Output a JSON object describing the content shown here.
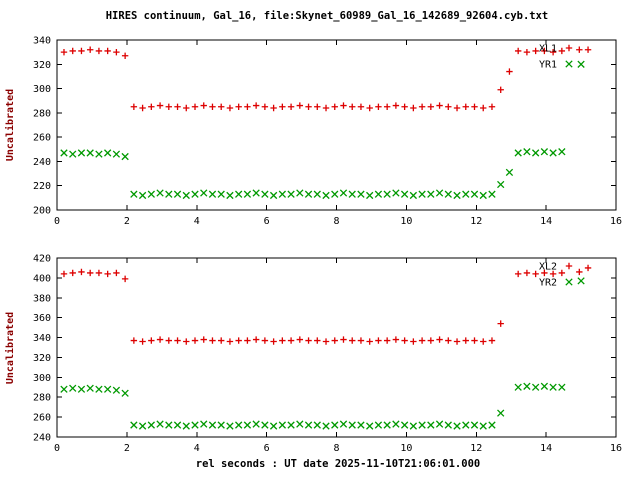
{
  "title": "HIRES continuum, Gal_16, file:Skynet_60989_Gal_16_142689_92604.cyb.txt",
  "xlabel": "rel seconds : UT date 2025-11-10T21:06:01.000",
  "colors": {
    "title": "#000000",
    "ylabel": "#8b0000",
    "xlabel": "#000000",
    "tick": "#000000",
    "red": "#dd0000",
    "green": "#009900",
    "frame": "#000000",
    "background": "#ffffff"
  },
  "chart_data": [
    {
      "type": "scatter",
      "title": "",
      "ylabel": "Uncalibrated",
      "xlim": [
        0,
        16
      ],
      "ylim": [
        200,
        340
      ],
      "xticks": [
        0,
        2,
        4,
        6,
        8,
        10,
        12,
        14,
        16
      ],
      "yticks": [
        200,
        220,
        240,
        260,
        280,
        300,
        320,
        340
      ],
      "grid": false,
      "legend_position": "top-right-inside",
      "legend": [
        {
          "label": "XL1",
          "marker": "plus",
          "color": "#dd0000"
        },
        {
          "label": "YR1",
          "marker": "cross",
          "color": "#009900"
        }
      ],
      "series": [
        {
          "name": "XL1",
          "marker": "plus",
          "color": "#dd0000",
          "points": [
            [
              0.2,
              330
            ],
            [
              0.45,
              331
            ],
            [
              0.7,
              331
            ],
            [
              0.95,
              332
            ],
            [
              1.2,
              331
            ],
            [
              1.45,
              331
            ],
            [
              1.7,
              330
            ],
            [
              1.95,
              327
            ],
            [
              2.2,
              285
            ],
            [
              2.45,
              284
            ],
            [
              2.7,
              285
            ],
            [
              2.95,
              286
            ],
            [
              3.2,
              285
            ],
            [
              3.45,
              285
            ],
            [
              3.7,
              284
            ],
            [
              3.95,
              285
            ],
            [
              4.2,
              286
            ],
            [
              4.45,
              285
            ],
            [
              4.7,
              285
            ],
            [
              4.95,
              284
            ],
            [
              5.2,
              285
            ],
            [
              5.45,
              285
            ],
            [
              5.7,
              286
            ],
            [
              5.95,
              285
            ],
            [
              6.2,
              284
            ],
            [
              6.45,
              285
            ],
            [
              6.7,
              285
            ],
            [
              6.95,
              286
            ],
            [
              7.2,
              285
            ],
            [
              7.45,
              285
            ],
            [
              7.7,
              284
            ],
            [
              7.95,
              285
            ],
            [
              8.2,
              286
            ],
            [
              8.45,
              285
            ],
            [
              8.7,
              285
            ],
            [
              8.95,
              284
            ],
            [
              9.2,
              285
            ],
            [
              9.45,
              285
            ],
            [
              9.7,
              286
            ],
            [
              9.95,
              285
            ],
            [
              10.2,
              284
            ],
            [
              10.45,
              285
            ],
            [
              10.7,
              285
            ],
            [
              10.95,
              286
            ],
            [
              11.2,
              285
            ],
            [
              11.45,
              284
            ],
            [
              11.7,
              285
            ],
            [
              11.95,
              285
            ],
            [
              12.2,
              284
            ],
            [
              12.45,
              285
            ],
            [
              12.7,
              299
            ],
            [
              12.95,
              314
            ],
            [
              13.2,
              331
            ],
            [
              13.45,
              330
            ],
            [
              13.7,
              331
            ],
            [
              13.95,
              331
            ],
            [
              14.2,
              330
            ],
            [
              14.45,
              331
            ],
            [
              14.95,
              332
            ],
            [
              15.2,
              332
            ]
          ]
        },
        {
          "name": "YR1",
          "marker": "cross",
          "color": "#009900",
          "points": [
            [
              0.2,
              247
            ],
            [
              0.45,
              246
            ],
            [
              0.7,
              247
            ],
            [
              0.95,
              247
            ],
            [
              1.2,
              246
            ],
            [
              1.45,
              247
            ],
            [
              1.7,
              246
            ],
            [
              1.95,
              244
            ],
            [
              2.2,
              213
            ],
            [
              2.45,
              212
            ],
            [
              2.7,
              213
            ],
            [
              2.95,
              214
            ],
            [
              3.2,
              213
            ],
            [
              3.45,
              213
            ],
            [
              3.7,
              212
            ],
            [
              3.95,
              213
            ],
            [
              4.2,
              214
            ],
            [
              4.45,
              213
            ],
            [
              4.7,
              213
            ],
            [
              4.95,
              212
            ],
            [
              5.2,
              213
            ],
            [
              5.45,
              213
            ],
            [
              5.7,
              214
            ],
            [
              5.95,
              213
            ],
            [
              6.2,
              212
            ],
            [
              6.45,
              213
            ],
            [
              6.7,
              213
            ],
            [
              6.95,
              214
            ],
            [
              7.2,
              213
            ],
            [
              7.45,
              213
            ],
            [
              7.7,
              212
            ],
            [
              7.95,
              213
            ],
            [
              8.2,
              214
            ],
            [
              8.45,
              213
            ],
            [
              8.7,
              213
            ],
            [
              8.95,
              212
            ],
            [
              9.2,
              213
            ],
            [
              9.45,
              213
            ],
            [
              9.7,
              214
            ],
            [
              9.95,
              213
            ],
            [
              10.2,
              212
            ],
            [
              10.45,
              213
            ],
            [
              10.7,
              213
            ],
            [
              10.95,
              214
            ],
            [
              11.2,
              213
            ],
            [
              11.45,
              212
            ],
            [
              11.7,
              213
            ],
            [
              11.95,
              213
            ],
            [
              12.2,
              212
            ],
            [
              12.45,
              213
            ],
            [
              12.7,
              221
            ],
            [
              12.95,
              231
            ],
            [
              13.2,
              247
            ],
            [
              13.45,
              248
            ],
            [
              13.7,
              247
            ],
            [
              13.95,
              248
            ],
            [
              14.2,
              247
            ],
            [
              14.45,
              248
            ],
            [
              15.0,
              320
            ]
          ]
        }
      ]
    },
    {
      "type": "scatter",
      "title": "",
      "ylabel": "Uncalibrated",
      "xlim": [
        0,
        16
      ],
      "ylim": [
        240,
        420
      ],
      "xticks": [
        0,
        2,
        4,
        6,
        8,
        10,
        12,
        14,
        16
      ],
      "yticks": [
        240,
        260,
        280,
        300,
        320,
        340,
        360,
        380,
        400,
        420
      ],
      "grid": false,
      "legend_position": "top-right-inside",
      "legend": [
        {
          "label": "XL2",
          "marker": "plus",
          "color": "#dd0000"
        },
        {
          "label": "YR2",
          "marker": "cross",
          "color": "#009900"
        }
      ],
      "series": [
        {
          "name": "XL2",
          "marker": "plus",
          "color": "#dd0000",
          "points": [
            [
              0.2,
              404
            ],
            [
              0.45,
              405
            ],
            [
              0.7,
              406
            ],
            [
              0.95,
              405
            ],
            [
              1.2,
              405
            ],
            [
              1.45,
              404
            ],
            [
              1.7,
              405
            ],
            [
              1.95,
              399
            ],
            [
              2.2,
              337
            ],
            [
              2.45,
              336
            ],
            [
              2.7,
              337
            ],
            [
              2.95,
              338
            ],
            [
              3.2,
              337
            ],
            [
              3.45,
              337
            ],
            [
              3.7,
              336
            ],
            [
              3.95,
              337
            ],
            [
              4.2,
              338
            ],
            [
              4.45,
              337
            ],
            [
              4.7,
              337
            ],
            [
              4.95,
              336
            ],
            [
              5.2,
              337
            ],
            [
              5.45,
              337
            ],
            [
              5.7,
              338
            ],
            [
              5.95,
              337
            ],
            [
              6.2,
              336
            ],
            [
              6.45,
              337
            ],
            [
              6.7,
              337
            ],
            [
              6.95,
              338
            ],
            [
              7.2,
              337
            ],
            [
              7.45,
              337
            ],
            [
              7.7,
              336
            ],
            [
              7.95,
              337
            ],
            [
              8.2,
              338
            ],
            [
              8.45,
              337
            ],
            [
              8.7,
              337
            ],
            [
              8.95,
              336
            ],
            [
              9.2,
              337
            ],
            [
              9.45,
              337
            ],
            [
              9.7,
              338
            ],
            [
              9.95,
              337
            ],
            [
              10.2,
              336
            ],
            [
              10.45,
              337
            ],
            [
              10.7,
              337
            ],
            [
              10.95,
              338
            ],
            [
              11.2,
              337
            ],
            [
              11.45,
              336
            ],
            [
              11.7,
              337
            ],
            [
              11.95,
              337
            ],
            [
              12.2,
              336
            ],
            [
              12.45,
              337
            ],
            [
              12.7,
              354
            ],
            [
              13.2,
              404
            ],
            [
              13.45,
              405
            ],
            [
              13.7,
              404
            ],
            [
              13.95,
              405
            ],
            [
              14.2,
              404
            ],
            [
              14.45,
              405
            ],
            [
              14.95,
              406
            ],
            [
              15.2,
              410
            ]
          ]
        },
        {
          "name": "YR2",
          "marker": "cross",
          "color": "#009900",
          "points": [
            [
              0.2,
              288
            ],
            [
              0.45,
              289
            ],
            [
              0.7,
              288
            ],
            [
              0.95,
              289
            ],
            [
              1.2,
              288
            ],
            [
              1.45,
              288
            ],
            [
              1.7,
              287
            ],
            [
              1.95,
              284
            ],
            [
              2.2,
              252
            ],
            [
              2.45,
              251
            ],
            [
              2.7,
              252
            ],
            [
              2.95,
              253
            ],
            [
              3.2,
              252
            ],
            [
              3.45,
              252
            ],
            [
              3.7,
              251
            ],
            [
              3.95,
              252
            ],
            [
              4.2,
              253
            ],
            [
              4.45,
              252
            ],
            [
              4.7,
              252
            ],
            [
              4.95,
              251
            ],
            [
              5.2,
              252
            ],
            [
              5.45,
              252
            ],
            [
              5.7,
              253
            ],
            [
              5.95,
              252
            ],
            [
              6.2,
              251
            ],
            [
              6.45,
              252
            ],
            [
              6.7,
              252
            ],
            [
              6.95,
              253
            ],
            [
              7.2,
              252
            ],
            [
              7.45,
              252
            ],
            [
              7.7,
              251
            ],
            [
              7.95,
              252
            ],
            [
              8.2,
              253
            ],
            [
              8.45,
              252
            ],
            [
              8.7,
              252
            ],
            [
              8.95,
              251
            ],
            [
              9.2,
              252
            ],
            [
              9.45,
              252
            ],
            [
              9.7,
              253
            ],
            [
              9.95,
              252
            ],
            [
              10.2,
              251
            ],
            [
              10.45,
              252
            ],
            [
              10.7,
              252
            ],
            [
              10.95,
              253
            ],
            [
              11.2,
              252
            ],
            [
              11.45,
              251
            ],
            [
              11.7,
              252
            ],
            [
              11.95,
              252
            ],
            [
              12.2,
              251
            ],
            [
              12.45,
              252
            ],
            [
              12.7,
              264
            ],
            [
              13.2,
              290
            ],
            [
              13.45,
              291
            ],
            [
              13.7,
              290
            ],
            [
              13.95,
              291
            ],
            [
              14.2,
              290
            ],
            [
              14.45,
              290
            ],
            [
              15.0,
              397
            ]
          ]
        }
      ]
    }
  ]
}
